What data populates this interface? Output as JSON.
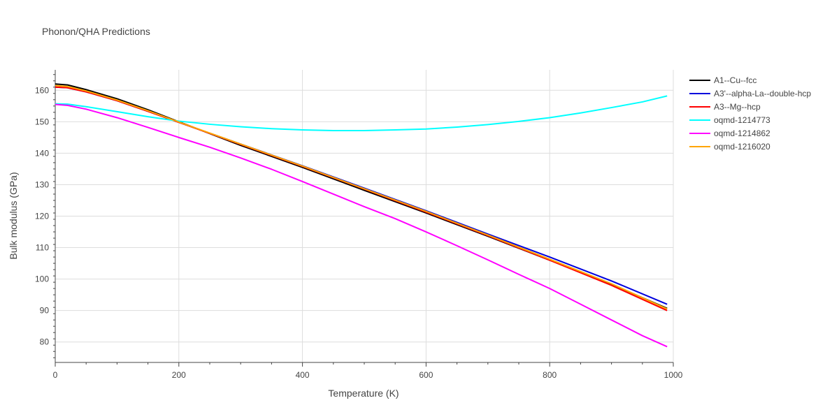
{
  "chart_data": {
    "type": "line",
    "title": "Phonon/QHA Predictions",
    "xlabel": "Temperature (K)",
    "ylabel": "Bulk modulus (GPa)",
    "xlim": [
      0,
      1000
    ],
    "ylim": [
      73.5,
      166.5
    ],
    "xticks": [
      0,
      200,
      400,
      600,
      800,
      1000
    ],
    "yticks": [
      80,
      90,
      100,
      110,
      120,
      130,
      140,
      150,
      160
    ],
    "grid": true,
    "legend_position": "top-right",
    "series": [
      {
        "name": "A1--Cu--fcc",
        "color": "#000000",
        "x": [
          0,
          20,
          50,
          100,
          150,
          200,
          300,
          400,
          500,
          600,
          700,
          800,
          900,
          990
        ],
        "y": [
          162.0,
          161.7,
          160.2,
          157.3,
          153.8,
          150.0,
          142.5,
          135.5,
          128.2,
          121.0,
          113.6,
          106.0,
          98.3,
          90.7
        ]
      },
      {
        "name": "A3'--alpha-La--double-hcp",
        "color": "#0000dd",
        "x": [
          0,
          20,
          50,
          100,
          150,
          200,
          300,
          400,
          500,
          600,
          700,
          800,
          900,
          990
        ],
        "y": [
          161.0,
          160.8,
          159.5,
          156.7,
          153.3,
          149.8,
          142.9,
          136.0,
          128.9,
          121.7,
          114.3,
          107.0,
          99.4,
          92.0
        ]
      },
      {
        "name": "A3--Mg--hcp",
        "color": "#ff0000",
        "x": [
          0,
          20,
          50,
          100,
          150,
          200,
          300,
          400,
          500,
          600,
          700,
          800,
          900,
          990
        ],
        "y": [
          161.0,
          160.8,
          159.5,
          156.7,
          153.3,
          149.8,
          142.8,
          135.8,
          128.6,
          121.3,
          113.8,
          106.0,
          98.0,
          90.0
        ]
      },
      {
        "name": "oqmd-1214773",
        "color": "#00ffff",
        "x": [
          0,
          20,
          50,
          100,
          150,
          200,
          250,
          300,
          350,
          400,
          450,
          500,
          550,
          600,
          650,
          700,
          750,
          800,
          850,
          900,
          950,
          990
        ],
        "y": [
          155.7,
          155.6,
          154.8,
          153.2,
          151.6,
          150.2,
          149.2,
          148.4,
          147.8,
          147.4,
          147.2,
          147.2,
          147.4,
          147.7,
          148.3,
          149.1,
          150.1,
          151.3,
          152.8,
          154.5,
          156.3,
          158.2
        ]
      },
      {
        "name": "oqmd-1214862",
        "color": "#ff00ff",
        "x": [
          0,
          20,
          50,
          100,
          150,
          200,
          250,
          300,
          350,
          400,
          450,
          500,
          550,
          600,
          650,
          700,
          750,
          800,
          850,
          900,
          950,
          990
        ],
        "y": [
          155.5,
          155.2,
          154.0,
          151.3,
          148.2,
          145.0,
          141.9,
          138.5,
          134.9,
          131.0,
          127.0,
          123.0,
          119.2,
          115.0,
          110.6,
          106.1,
          101.5,
          97.0,
          92.0,
          87.0,
          82.0,
          78.5
        ]
      },
      {
        "name": "oqmd-1216020",
        "color": "#ffa500",
        "x": [
          0,
          20,
          50,
          100,
          150,
          200,
          300,
          400,
          500,
          600,
          700,
          800,
          900,
          990
        ],
        "y": [
          161.5,
          161.2,
          159.8,
          156.9,
          153.5,
          149.9,
          142.9,
          135.9,
          128.7,
          121.5,
          114.0,
          106.3,
          98.5,
          90.5
        ]
      }
    ]
  }
}
